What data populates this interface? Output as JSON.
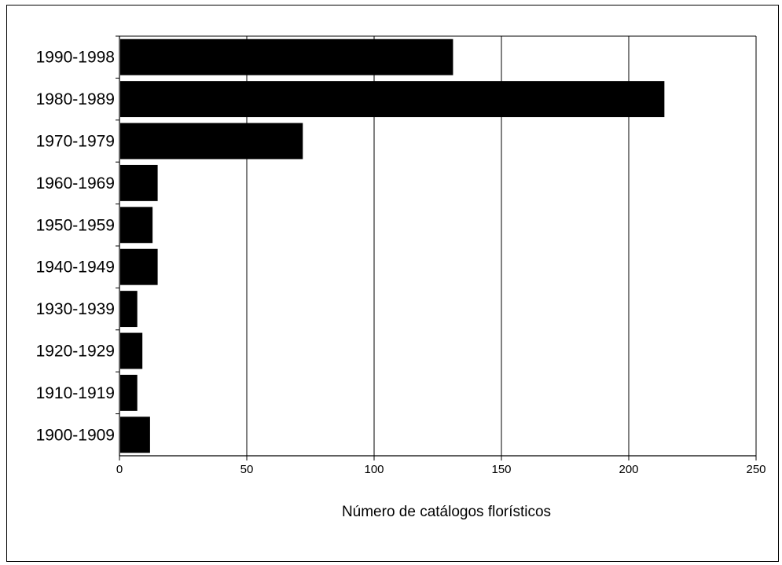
{
  "chart_data": {
    "type": "bar",
    "orientation": "horizontal",
    "categories": [
      "1990-1998",
      "1980-1989",
      "1970-1979",
      "1960-1969",
      "1950-1959",
      "1940-1949",
      "1930-1939",
      "1920-1929",
      "1910-1919",
      "1900-1909"
    ],
    "values": [
      131,
      214,
      72,
      15,
      13,
      15,
      7,
      9,
      7,
      12
    ],
    "title": "",
    "xlabel": "Número de catálogos florísticos",
    "ylabel": "",
    "xlim": [
      0,
      250
    ],
    "xticks": [
      0,
      50,
      100,
      150,
      200,
      250
    ],
    "grid": "vertical",
    "bar_color": "#000000"
  }
}
